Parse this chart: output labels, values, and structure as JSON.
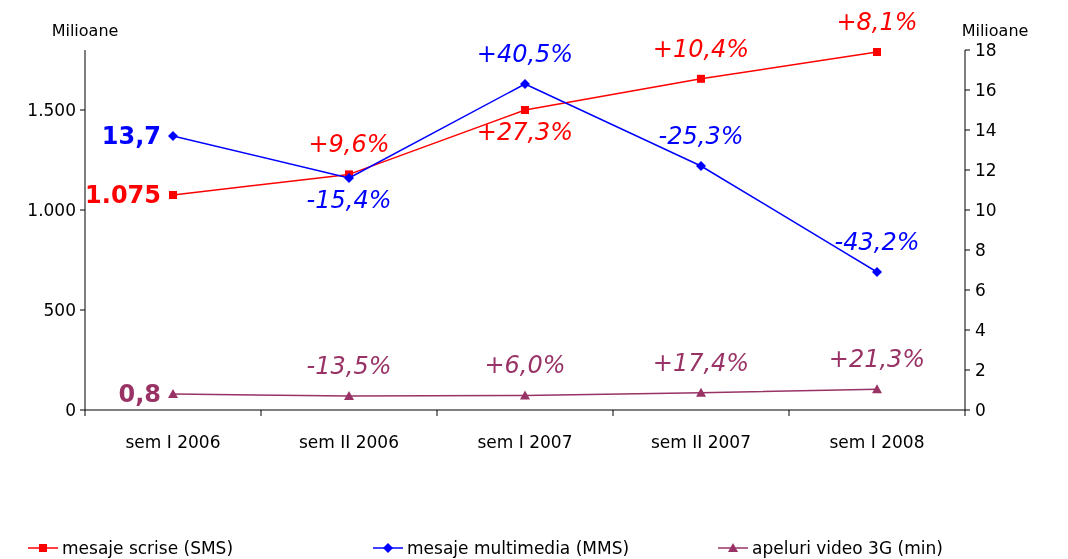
{
  "chart_data": {
    "type": "line",
    "ylabel": "Milioane",
    "y2label": "Milioane",
    "categories": [
      "sem I 2006",
      "sem II 2006",
      "sem I 2007",
      "sem II 2007",
      "sem I 2008"
    ],
    "ylim": [
      0,
      1800
    ],
    "yticks": [
      0,
      500,
      {
        "value": 1000,
        "label": "1.000"
      },
      {
        "value": 1500,
        "label": "1.500"
      }
    ],
    "y2lim": [
      0,
      18
    ],
    "y2ticks": [
      0,
      2,
      4,
      6,
      8,
      10,
      12,
      14,
      16,
      18
    ],
    "grid": false,
    "legend": "bottom",
    "annotations": [
      {
        "text": "+9,6%",
        "x": "sem II 2006",
        "y": 1178
      },
      {
        "text": "+27,3%",
        "x": "sem I 2007",
        "y": 1500
      },
      {
        "text": "+10,4%",
        "x": "sem II 2007",
        "y": 1656
      },
      {
        "text": "+8,1%",
        "x": "sem I 2008",
        "y": 1790
      },
      {
        "text": "-15,4%",
        "x": "sem II 2006",
        "y": 1160
      },
      {
        "text": "+40,5%",
        "x": "sem I 2007",
        "y": 1630
      },
      {
        "text": "-25,3%",
        "x": "sem II 2007",
        "y": 1220
      },
      {
        "text": "-43,2%",
        "x": "sem I 2008",
        "y": 690
      },
      {
        "text": "-13,5%",
        "x": "sem II 2006",
        "y": 70
      },
      {
        "text": "+6,0%",
        "x": "sem I 2007",
        "y": 73
      },
      {
        "text": "+17,4%",
        "x": "sem II 2007",
        "y": 86
      },
      {
        "text": "+21,3%",
        "x": "sem I 2008",
        "y": 104
      }
    ],
    "series": [
      {
        "name": "mesaje scrise (SMS)",
        "color": "#ff0000",
        "marker": "square",
        "values": [
          1075,
          1178,
          1500,
          1656,
          1790
        ],
        "value_labels": [
          "1.075",
          null,
          null,
          null,
          null
        ]
      },
      {
        "name": "mesaje multimedia (MMS)",
        "color": "#0000ff",
        "marker": "diamond",
        "axis": "y2",
        "values": [
          13.7,
          11.6,
          16.3,
          12.2,
          6.9
        ],
        "value_labels": [
          "13,7",
          null,
          null,
          null,
          null
        ]
      },
      {
        "name": "apeluri video 3G (min)",
        "color": "#993366",
        "marker": "triangle",
        "axis": "y2",
        "values": [
          0.8,
          0.7,
          0.73,
          0.86,
          1.04
        ],
        "value_labels": [
          "0,8",
          null,
          null,
          null,
          null
        ]
      }
    ]
  }
}
